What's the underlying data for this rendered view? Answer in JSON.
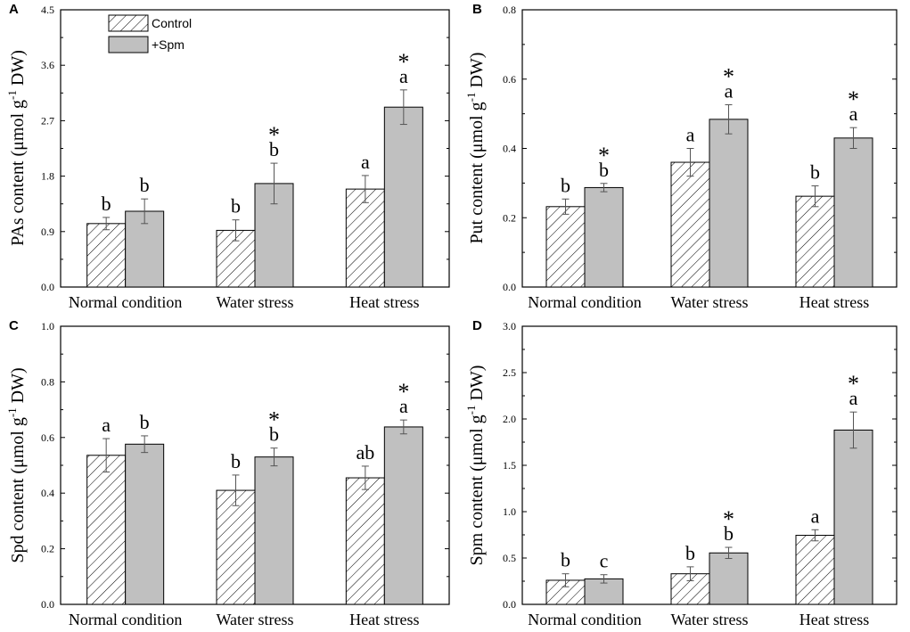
{
  "colors": {
    "spm_fill": "#c0c0c0",
    "axis": "#000000",
    "background": "#ffffff"
  },
  "legend": {
    "items": [
      {
        "name": "Control",
        "pattern": "hatch"
      },
      {
        "name": "+Spm",
        "pattern": "grey"
      }
    ]
  },
  "chart_data": [
    {
      "type": "bar",
      "panel": "A",
      "ylabel_pre": "PAs content (μmol g",
      "ylabel_sup": "-1",
      "ylabel_post": " DW)",
      "categories": [
        "Normal condition",
        "Water stress",
        "Heat stress"
      ],
      "ylim": [
        0,
        4.5
      ],
      "yticks": [
        "0.0",
        "0.9",
        "1.8",
        "2.7",
        "3.6",
        "4.5"
      ],
      "series": [
        {
          "name": "Control",
          "values": [
            1.03,
            0.92,
            1.59
          ],
          "errors": [
            0.1,
            0.17,
            0.22
          ],
          "letters": [
            "b",
            "b",
            "a"
          ],
          "stars": [
            false,
            false,
            false
          ]
        },
        {
          "name": "+Spm",
          "values": [
            1.23,
            1.68,
            2.92
          ],
          "errors": [
            0.2,
            0.33,
            0.28
          ],
          "letters": [
            "b",
            "b",
            "a"
          ],
          "stars": [
            false,
            true,
            true
          ]
        }
      ]
    },
    {
      "type": "bar",
      "panel": "B",
      "ylabel_pre": "Put content (μmol g",
      "ylabel_sup": "-1",
      "ylabel_post": " DW)",
      "categories": [
        "Normal condition",
        "Water stress",
        "Heat stress"
      ],
      "ylim": [
        0,
        0.8
      ],
      "yticks": [
        "0.0",
        "0.2",
        "0.4",
        "0.6",
        "0.8"
      ],
      "series": [
        {
          "name": "Control",
          "values": [
            0.232,
            0.36,
            0.262
          ],
          "errors": [
            0.022,
            0.04,
            0.03
          ],
          "letters": [
            "b",
            "a",
            "b"
          ],
          "stars": [
            false,
            false,
            false
          ]
        },
        {
          "name": "+Spm",
          "values": [
            0.287,
            0.484,
            0.43
          ],
          "errors": [
            0.012,
            0.042,
            0.03
          ],
          "letters": [
            "b",
            "a",
            "a"
          ],
          "stars": [
            true,
            true,
            true
          ]
        }
      ]
    },
    {
      "type": "bar",
      "panel": "C",
      "ylabel_pre": "Spd content (μmol g",
      "ylabel_sup": "-1",
      "ylabel_post": " DW)",
      "categories": [
        "Normal condition",
        "Water stress",
        "Heat stress"
      ],
      "ylim": [
        0,
        1.0
      ],
      "yticks": [
        "0.0",
        "0.2",
        "0.4",
        "0.6",
        "0.8",
        "1.0"
      ],
      "series": [
        {
          "name": "Control",
          "values": [
            0.536,
            0.41,
            0.455
          ],
          "errors": [
            0.06,
            0.055,
            0.042
          ],
          "letters": [
            "a",
            "b",
            "ab"
          ],
          "stars": [
            false,
            false,
            false
          ]
        },
        {
          "name": "+Spm",
          "values": [
            0.576,
            0.53,
            0.638
          ],
          "errors": [
            0.03,
            0.032,
            0.025
          ],
          "letters": [
            "b",
            "b",
            "a"
          ],
          "stars": [
            false,
            true,
            true
          ]
        }
      ]
    },
    {
      "type": "bar",
      "panel": "D",
      "ylabel_pre": "Spm content (μmol g",
      "ylabel_sup": "-1",
      "ylabel_post": " DW)",
      "categories": [
        "Normal condition",
        "Water stress",
        "Heat stress"
      ],
      "ylim": [
        0,
        3.0
      ],
      "yticks": [
        "0.0",
        "0.5",
        "1.0",
        "1.5",
        "2.0",
        "2.5",
        "3.0"
      ],
      "series": [
        {
          "name": "Control",
          "values": [
            0.26,
            0.33,
            0.745
          ],
          "errors": [
            0.07,
            0.075,
            0.06
          ],
          "letters": [
            "b",
            "b",
            "a"
          ],
          "stars": [
            false,
            false,
            false
          ]
        },
        {
          "name": "+Spm",
          "values": [
            0.275,
            0.555,
            1.88
          ],
          "errors": [
            0.045,
            0.06,
            0.195
          ],
          "letters": [
            "c",
            "b",
            "a"
          ],
          "stars": [
            false,
            true,
            true
          ]
        }
      ]
    }
  ]
}
